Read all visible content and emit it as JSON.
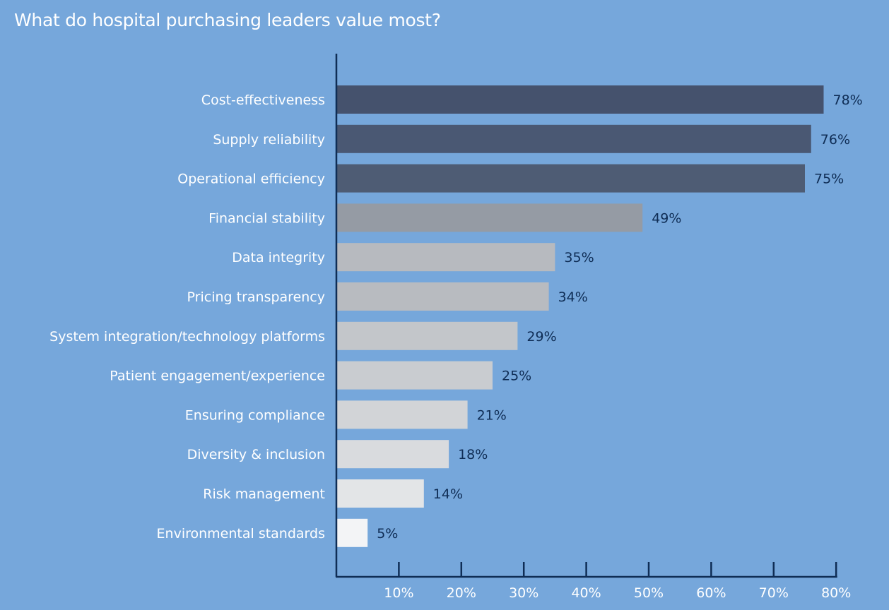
{
  "chart_data": {
    "type": "bar",
    "orientation": "horizontal",
    "title": "What do hospital purchasing leaders value most?",
    "categories": [
      "Cost-effectiveness",
      "Supply reliability",
      "Operational efficiency",
      "Financial stability",
      "Data integrity",
      "Pricing transparency",
      "System integration/technology platforms",
      "Patient engagement/experience",
      "Ensuring compliance",
      "Diversity & inclusion",
      "Risk management",
      "Environmental standards"
    ],
    "values": [
      78,
      76,
      75,
      49,
      35,
      34,
      29,
      25,
      21,
      18,
      14,
      5
    ],
    "value_labels": [
      "78%",
      "76%",
      "75%",
      "49%",
      "35%",
      "34%",
      "29%",
      "25%",
      "21%",
      "18%",
      "14%",
      "5%"
    ],
    "bar_colors": [
      "#45526d",
      "#4a5873",
      "#4e5c74",
      "#959ba4",
      "#b7babf",
      "#b8bbc0",
      "#c3c6ca",
      "#c9ccd0",
      "#d2d4d7",
      "#d9dbde",
      "#e3e5e7",
      "#f3f4f6"
    ],
    "xlim": [
      0,
      80
    ],
    "x_ticks": [
      10,
      20,
      30,
      40,
      50,
      60,
      70,
      80
    ],
    "x_tick_labels": [
      "10%",
      "20%",
      "30%",
      "40%",
      "50%",
      "60%",
      "70%",
      "80%"
    ],
    "grid": false,
    "legend": "none",
    "background": "#76a7db",
    "axis_color": "#0f2d55",
    "value_label_color": "#0f2d55"
  }
}
